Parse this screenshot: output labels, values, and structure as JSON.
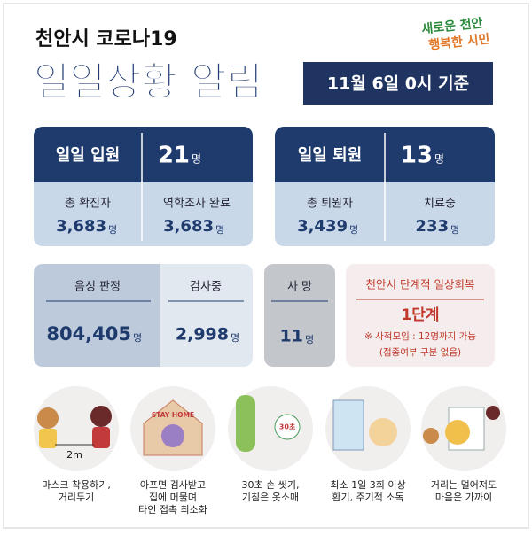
{
  "header": {
    "subtitle": "천안시 코로나19",
    "title": "일일상황 알림",
    "date": "11월 6일 0시 기준",
    "logo": [
      "새로운 천안",
      "행복한 시민"
    ]
  },
  "admission": {
    "main": {
      "label": "일일 입원",
      "value": "21",
      "unit": "명"
    },
    "items": [
      {
        "label": "총 확진자",
        "value": "3,683",
        "unit": "명"
      },
      {
        "label": "역학조사 완료",
        "value": "3,683",
        "unit": "명"
      }
    ]
  },
  "discharge": {
    "main": {
      "label": "일일 퇴원",
      "value": "13",
      "unit": "명"
    },
    "items": [
      {
        "label": "총 퇴원자",
        "value": "3,439",
        "unit": "명"
      },
      {
        "label": "치료중",
        "value": "233",
        "unit": "명"
      }
    ]
  },
  "tests": [
    {
      "label": "음성 판정",
      "value": "804,405",
      "unit": "명"
    },
    {
      "label": "검사중",
      "value": "2,998",
      "unit": "명"
    }
  ],
  "death": {
    "label": "사 망",
    "value": "11",
    "unit": "명"
  },
  "notice": {
    "title": "천안시 단계적 일상회복",
    "level": "1단계",
    "rule": "※ 사적모임 : 12명까지 가능",
    "note": "(접종여부 구분 없음)"
  },
  "tips": [
    {
      "caption": [
        "마스크 착용하기,",
        "거리두기"
      ],
      "icon_text": "2m"
    },
    {
      "caption": [
        "아프면 검사받고",
        "집에 머물며",
        "타인 접촉 최소화"
      ],
      "icon_text": "STAY HOME"
    },
    {
      "caption": [
        "30초 손 씻기,",
        "기침은 옷소매"
      ],
      "icon_text": "30초"
    },
    {
      "caption": [
        "최소 1일 3회 이상",
        "환기, 주기적 소독"
      ]
    },
    {
      "caption": [
        "거리는 멀어져도",
        "마음은 가까이"
      ]
    }
  ]
}
